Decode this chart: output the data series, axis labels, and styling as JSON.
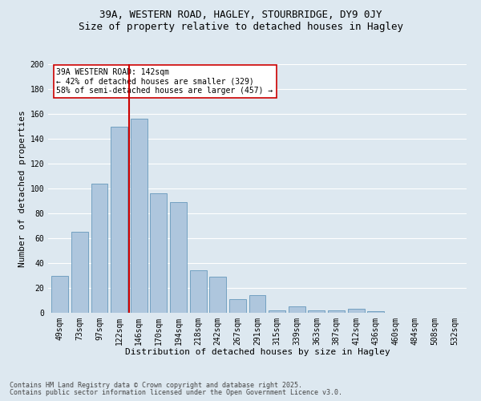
{
  "title1": "39A, WESTERN ROAD, HAGLEY, STOURBRIDGE, DY9 0JY",
  "title2": "Size of property relative to detached houses in Hagley",
  "xlabel": "Distribution of detached houses by size in Hagley",
  "ylabel": "Number of detached properties",
  "categories": [
    "49sqm",
    "73sqm",
    "97sqm",
    "122sqm",
    "146sqm",
    "170sqm",
    "194sqm",
    "218sqm",
    "242sqm",
    "267sqm",
    "291sqm",
    "315sqm",
    "339sqm",
    "363sqm",
    "387sqm",
    "412sqm",
    "436sqm",
    "460sqm",
    "484sqm",
    "508sqm",
    "532sqm"
  ],
  "values": [
    30,
    65,
    104,
    150,
    156,
    96,
    89,
    34,
    29,
    11,
    14,
    2,
    5,
    2,
    2,
    3,
    1,
    0,
    0,
    0,
    0
  ],
  "bar_color": "#aec6dd",
  "bar_edge_color": "#6699bb",
  "bg_color": "#dde8f0",
  "grid_color": "#ffffff",
  "vline_x_index": 3.5,
  "vline_color": "#cc0000",
  "annotation_text": "39A WESTERN ROAD: 142sqm\n← 42% of detached houses are smaller (329)\n58% of semi-detached houses are larger (457) →",
  "annotation_box_facecolor": "#ffffff",
  "annotation_box_edgecolor": "#cc0000",
  "ylim": [
    0,
    200
  ],
  "yticks": [
    0,
    20,
    40,
    60,
    80,
    100,
    120,
    140,
    160,
    180,
    200
  ],
  "footnote1": "Contains HM Land Registry data © Crown copyright and database right 2025.",
  "footnote2": "Contains public sector information licensed under the Open Government Licence v3.0.",
  "title1_fontsize": 9,
  "title2_fontsize": 9,
  "xlabel_fontsize": 8,
  "ylabel_fontsize": 8,
  "tick_fontsize": 7,
  "annotation_fontsize": 7,
  "footnote_fontsize": 6
}
